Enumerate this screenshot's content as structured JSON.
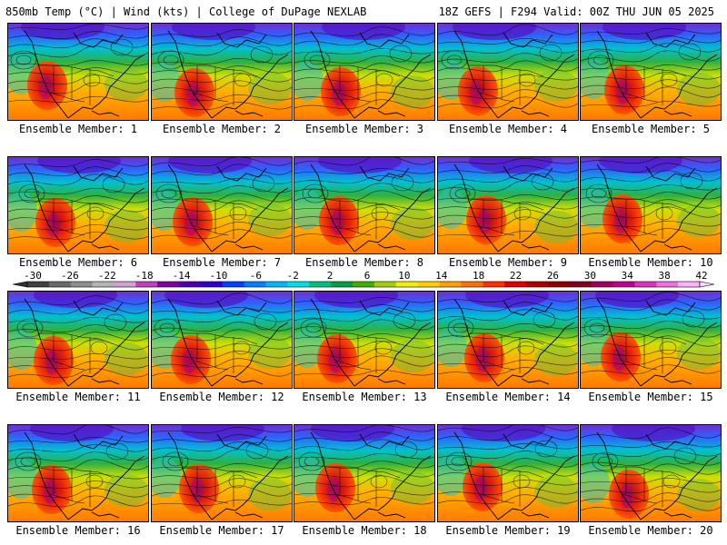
{
  "header": {
    "left_title": "850mb Temp (°C) | Wind (kts) | College of DuPage NEXLAB",
    "right_title": "18Z GEFS | F294 Valid: 00Z THU JUN 05 2025"
  },
  "members": [
    {
      "label": "Ensemble Member: 1"
    },
    {
      "label": "Ensemble Member: 2"
    },
    {
      "label": "Ensemble Member: 3"
    },
    {
      "label": "Ensemble Member: 4"
    },
    {
      "label": "Ensemble Member: 5"
    },
    {
      "label": "Ensemble Member: 6"
    },
    {
      "label": "Ensemble Member: 7"
    },
    {
      "label": "Ensemble Member: 8"
    },
    {
      "label": "Ensemble Member: 9"
    },
    {
      "label": "Ensemble Member: 10"
    },
    {
      "label": "Ensemble Member: 11"
    },
    {
      "label": "Ensemble Member: 12"
    },
    {
      "label": "Ensemble Member: 13"
    },
    {
      "label": "Ensemble Member: 14"
    },
    {
      "label": "Ensemble Member: 15"
    },
    {
      "label": "Ensemble Member: 16"
    },
    {
      "label": "Ensemble Member: 17"
    },
    {
      "label": "Ensemble Member: 18"
    },
    {
      "label": "Ensemble Member: 19"
    },
    {
      "label": "Ensemble Member: 20"
    }
  ],
  "colorbar": {
    "tick_labels": [
      "-30",
      "-26",
      "-22",
      "-18",
      "-14",
      "-10",
      "-6",
      "-2",
      "2",
      "6",
      "10",
      "14",
      "18",
      "22",
      "26",
      "30",
      "34",
      "38",
      "42"
    ],
    "colors": [
      "#404040",
      "#6a6a6a",
      "#8e8e8e",
      "#b4b4b4",
      "#d2a0d2",
      "#c040c0",
      "#8000a0",
      "#5000b0",
      "#3000d0",
      "#0040ff",
      "#0080ff",
      "#00b8ff",
      "#00e0e0",
      "#00c080",
      "#00a040",
      "#40b000",
      "#a0d000",
      "#f0f000",
      "#ffd000",
      "#ffa000",
      "#ff7000",
      "#ff3000",
      "#e00000",
      "#b00000",
      "#900000",
      "#800020",
      "#a00060",
      "#c00090",
      "#e030c0",
      "#f070e0",
      "#ffb0ff"
    ]
  }
}
